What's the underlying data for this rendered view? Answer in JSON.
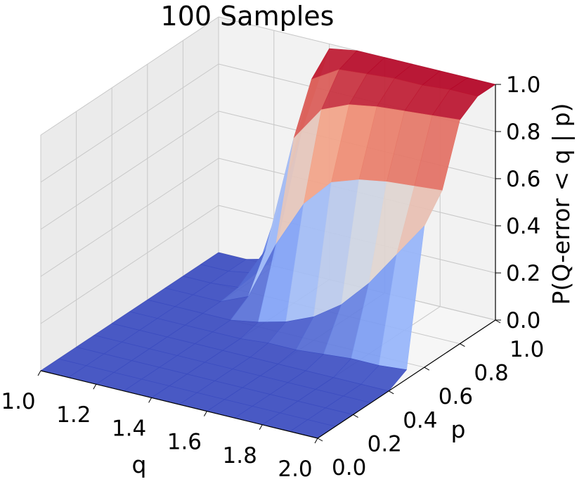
{
  "chart_data": {
    "type": "surface3d",
    "title": "100 Samples",
    "xlabel": "q",
    "ylabel": "p",
    "zlabel": "P(Q-error < q | p)",
    "xlim": [
      1.0,
      2.0
    ],
    "ylim": [
      0.0,
      1.0
    ],
    "zlim": [
      0.0,
      1.0
    ],
    "x_ticks": [
      "1.0",
      "1.2",
      "1.4",
      "1.6",
      "1.8",
      "2.0"
    ],
    "y_ticks": [
      "0.0",
      "0.2",
      "0.4",
      "0.6",
      "0.8",
      "1.0"
    ],
    "z_ticks": [
      "0.0",
      "0.2",
      "0.4",
      "0.6",
      "0.8",
      "1.0"
    ],
    "colormap": "coolwarm",
    "grid": true,
    "surface": {
      "q": [
        1.0,
        1.1,
        1.2,
        1.3,
        1.4,
        1.5,
        1.6,
        1.7,
        1.8,
        1.9,
        2.0
      ],
      "p": [
        0.0,
        0.1,
        0.2,
        0.3,
        0.4,
        0.5,
        0.6,
        0.7,
        0.8,
        0.9,
        1.0
      ],
      "note_rows": "values[i][j] = z at p[i], q[j]",
      "values": [
        [
          0.0,
          0.0,
          0.0,
          0.0,
          0.0,
          0.0,
          0.0,
          0.0,
          0.0,
          0.0,
          0.0
        ],
        [
          0.0,
          0.0,
          0.0,
          0.0,
          0.0,
          0.0,
          0.0,
          0.0,
          0.0,
          0.0,
          0.0
        ],
        [
          0.0,
          0.0,
          0.0,
          0.0,
          0.0,
          0.0,
          0.0,
          0.0,
          0.0,
          0.0,
          0.0
        ],
        [
          0.0,
          0.0,
          0.0,
          0.0,
          0.0,
          0.0,
          0.0,
          0.0,
          0.0,
          0.0,
          0.0
        ],
        [
          0.0,
          0.0,
          0.0,
          0.0,
          0.0,
          0.0,
          0.0,
          0.0,
          0.0,
          0.0,
          0.0
        ],
        [
          0.0,
          0.0,
          0.0,
          0.0,
          0.0,
          0.01,
          0.01,
          0.02,
          0.03,
          0.03,
          0.04
        ],
        [
          0.0,
          0.0,
          0.0,
          0.0,
          0.02,
          0.05,
          0.1,
          0.18,
          0.3,
          0.45,
          0.6
        ],
        [
          0.0,
          0.0,
          0.0,
          0.05,
          0.3,
          0.5,
          0.62,
          0.66,
          0.68,
          0.69,
          0.7
        ],
        [
          0.0,
          0.0,
          0.01,
          0.2,
          0.7,
          0.85,
          0.9,
          0.92,
          0.93,
          0.94,
          0.95
        ],
        [
          0.0,
          0.0,
          0.02,
          0.4,
          0.9,
          0.97,
          0.98,
          0.99,
          0.99,
          1.0,
          1.0
        ],
        [
          0.0,
          0.0,
          0.03,
          0.6,
          0.98,
          1.0,
          1.0,
          1.0,
          1.0,
          1.0,
          1.0
        ]
      ]
    }
  }
}
